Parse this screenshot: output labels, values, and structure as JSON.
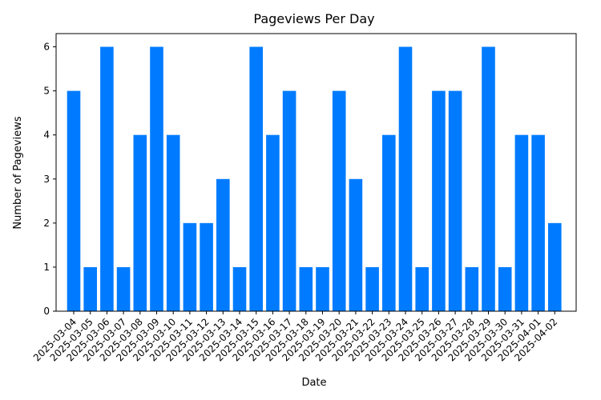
{
  "chart_data": {
    "type": "bar",
    "title": "Pageviews Per Day",
    "xlabel": "Date",
    "ylabel": "Number of Pageviews",
    "ylim": [
      0,
      6.3
    ],
    "yticks": [
      0,
      1,
      2,
      3,
      4,
      5,
      6
    ],
    "grid": false,
    "bar_color": "#007bff",
    "categories": [
      "2025-03-04",
      "2025-03-05",
      "2025-03-06",
      "2025-03-07",
      "2025-03-08",
      "2025-03-09",
      "2025-03-10",
      "2025-03-11",
      "2025-03-12",
      "2025-03-13",
      "2025-03-14",
      "2025-03-15",
      "2025-03-16",
      "2025-03-17",
      "2025-03-18",
      "2025-03-19",
      "2025-03-20",
      "2025-03-21",
      "2025-03-22",
      "2025-03-23",
      "2025-03-24",
      "2025-03-25",
      "2025-03-26",
      "2025-03-27",
      "2025-03-28",
      "2025-03-29",
      "2025-03-30",
      "2025-03-31",
      "2025-04-01",
      "2025-04-02"
    ],
    "values": [
      5,
      1,
      6,
      1,
      4,
      6,
      4,
      2,
      2,
      3,
      1,
      6,
      4,
      5,
      1,
      1,
      5,
      3,
      1,
      4,
      6,
      1,
      5,
      5,
      1,
      6,
      1,
      4,
      4,
      2
    ]
  }
}
